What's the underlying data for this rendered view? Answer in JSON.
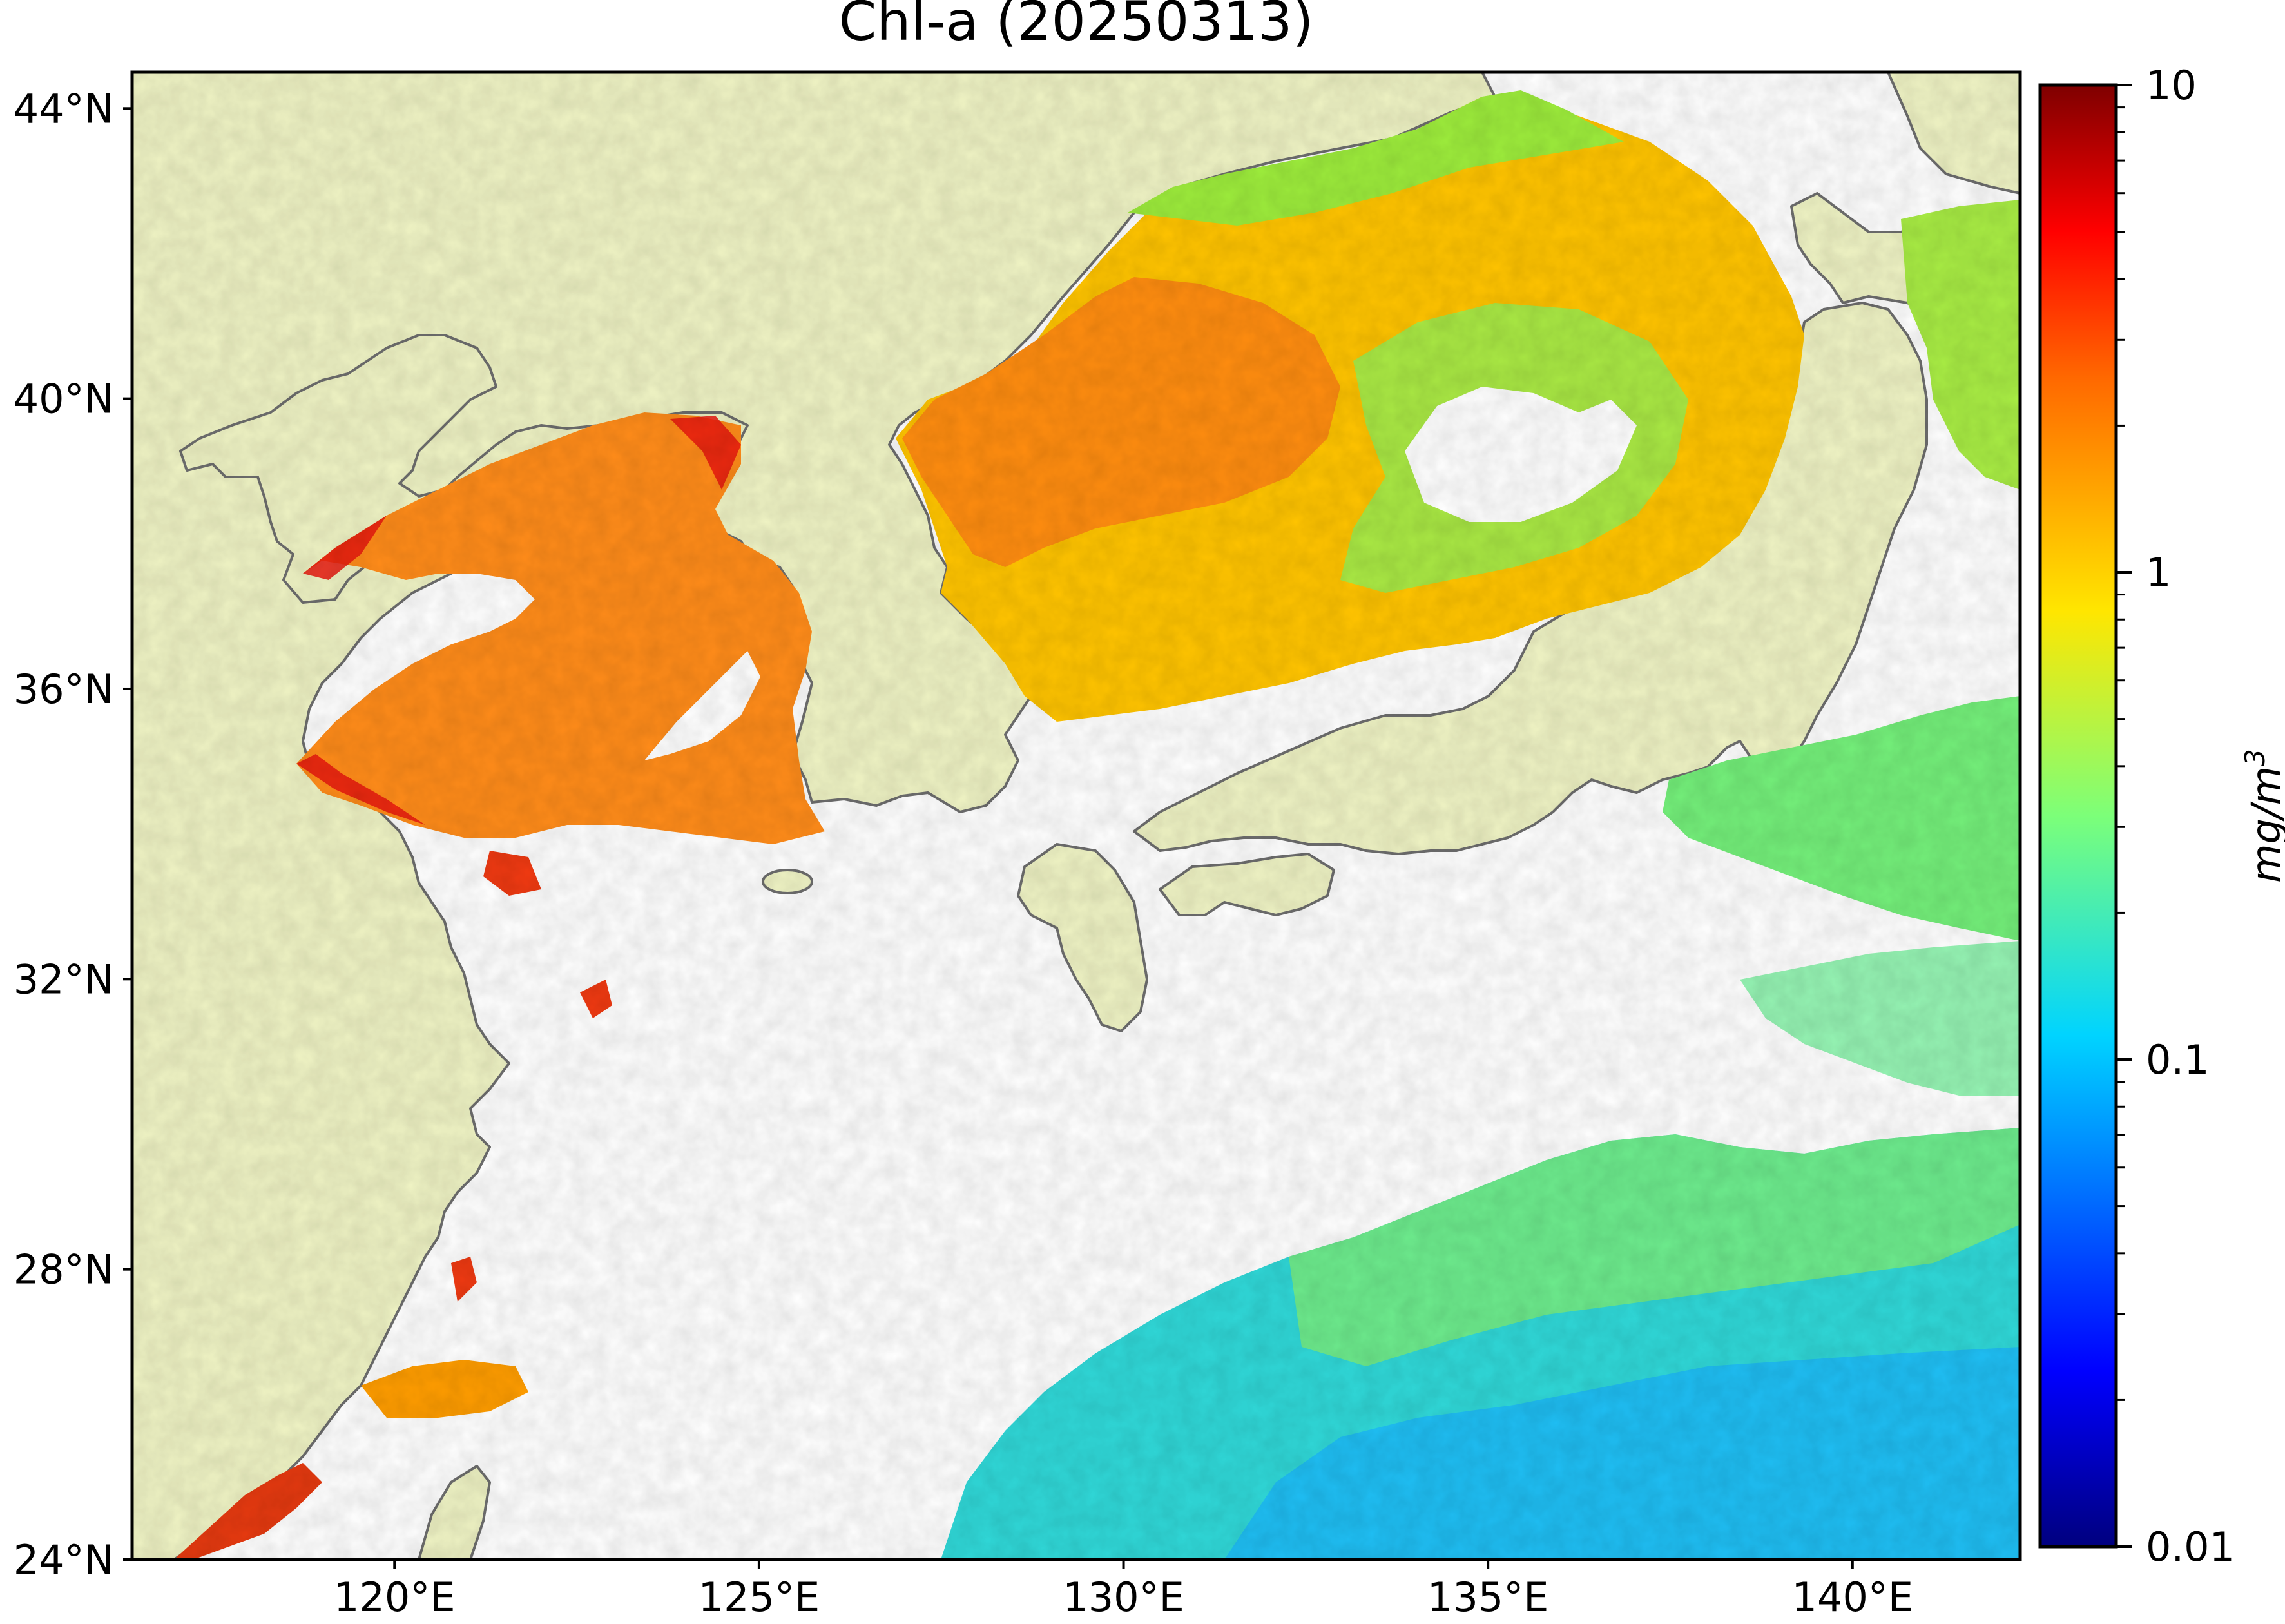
{
  "title": "Chl-a (20250313)",
  "map": {
    "lat_ticks": [
      "44°N",
      "40°N",
      "36°N",
      "32°N",
      "28°N",
      "24°N"
    ],
    "lon_ticks": [
      "120°E",
      "125°E",
      "130°E",
      "135°E",
      "140°E"
    ],
    "lat_values": [
      44,
      40,
      36,
      32,
      28,
      24
    ],
    "lon_values": [
      120,
      125,
      130,
      135,
      140
    ],
    "extent": {
      "lon_min": 116.4,
      "lon_max": 142.3,
      "lat_min": 24,
      "lat_max": 44.5
    },
    "land_color": "#eff3c4",
    "coastline_color": "#6e6e6e",
    "no_data_color": "#ffffff"
  },
  "colorbar": {
    "label": "mg/m",
    "label_superscript": "3",
    "ticks": [
      "10",
      "1",
      "0.1",
      "0.01"
    ],
    "tick_values": [
      10,
      1,
      0.1,
      0.01
    ],
    "scale": "log",
    "range": [
      0.01,
      10
    ],
    "colormap": "jet",
    "colors": [
      "#00007f",
      "#0000ff",
      "#007fff",
      "#00ffff",
      "#7fff7f",
      "#ffff00",
      "#ff7f00",
      "#ff0000",
      "#7f0000"
    ]
  }
}
